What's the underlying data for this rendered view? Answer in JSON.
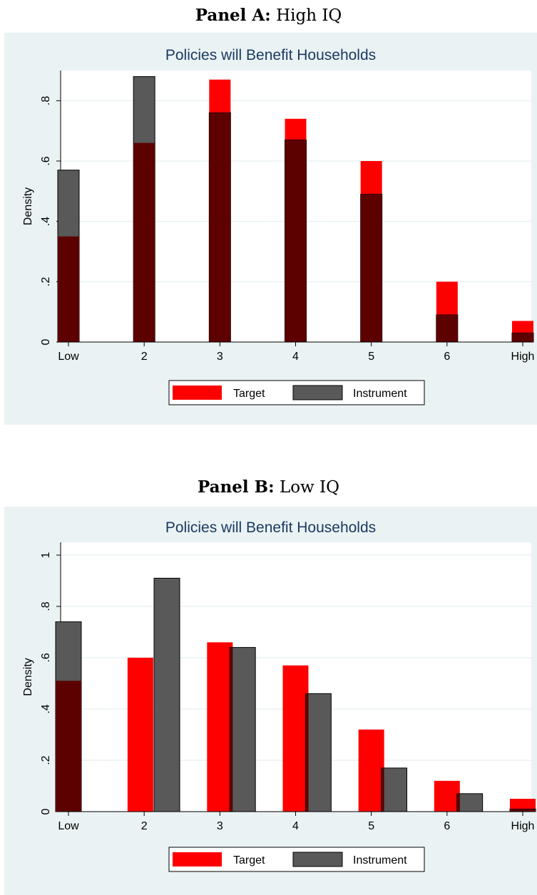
{
  "panels": [
    {
      "label": "Panel A:",
      "subtitle": "High IQ"
    },
    {
      "label": "Panel B:",
      "subtitle": "Low IQ"
    }
  ],
  "colors": {
    "background": "#eaf2f3",
    "plot_area": "#ffffff",
    "target": "#ff0000",
    "instrument": "#595959",
    "overlap": "#5c0000",
    "title": "#1b3a62"
  },
  "chart_data": [
    {
      "type": "bar",
      "title": "Policies will Benefit Households",
      "xlabel": "",
      "ylabel": "Density",
      "categories": [
        "Low",
        "2",
        "3",
        "4",
        "5",
        "6",
        "High"
      ],
      "xtick_values": [
        1,
        2,
        3,
        4,
        5,
        6,
        7
      ],
      "ylim": [
        0,
        0.9
      ],
      "yticks": [
        0,
        0.2,
        0.4,
        0.6,
        0.8
      ],
      "ytick_labels": [
        "0",
        ".2",
        ".4",
        ".6",
        ".8"
      ],
      "series": [
        {
          "name": "Target",
          "x": [
            1,
            2,
            3,
            4,
            5,
            6,
            7
          ],
          "values": [
            0.35,
            0.66,
            0.87,
            0.74,
            0.6,
            0.2,
            0.07
          ]
        },
        {
          "name": "Instrument",
          "x": [
            1,
            2,
            3,
            4,
            5,
            6,
            7
          ],
          "values": [
            0.57,
            0.88,
            0.76,
            0.67,
            0.49,
            0.09,
            0.03
          ]
        }
      ],
      "legend": "bottom",
      "grid": true
    },
    {
      "type": "bar",
      "title": "Policies will Benefit Households",
      "xlabel": "",
      "ylabel": "Density",
      "categories": [
        "Low",
        "2",
        "3",
        "4",
        "5",
        "6",
        "High"
      ],
      "xtick_values": [
        1,
        2,
        3,
        4,
        5,
        6,
        7
      ],
      "ylim": [
        0,
        1.05
      ],
      "yticks": [
        0,
        0.2,
        0.4,
        0.6,
        0.8,
        1
      ],
      "ytick_labels": [
        "0",
        ".2",
        ".4",
        ".6",
        ".8",
        "1"
      ],
      "series": [
        {
          "name": "Target",
          "x": [
            1,
            1.95,
            3,
            4,
            5,
            6,
            7
          ],
          "values": [
            0.51,
            0.6,
            0.66,
            0.57,
            0.32,
            0.12,
            0.05
          ]
        },
        {
          "name": "Instrument",
          "x": [
            1,
            2.3,
            3.3,
            4.3,
            5.3,
            6.3,
            7
          ],
          "values": [
            0.74,
            0.91,
            0.64,
            0.46,
            0.17,
            0.07,
            0.01
          ]
        }
      ],
      "legend": "bottom",
      "grid": true
    }
  ]
}
